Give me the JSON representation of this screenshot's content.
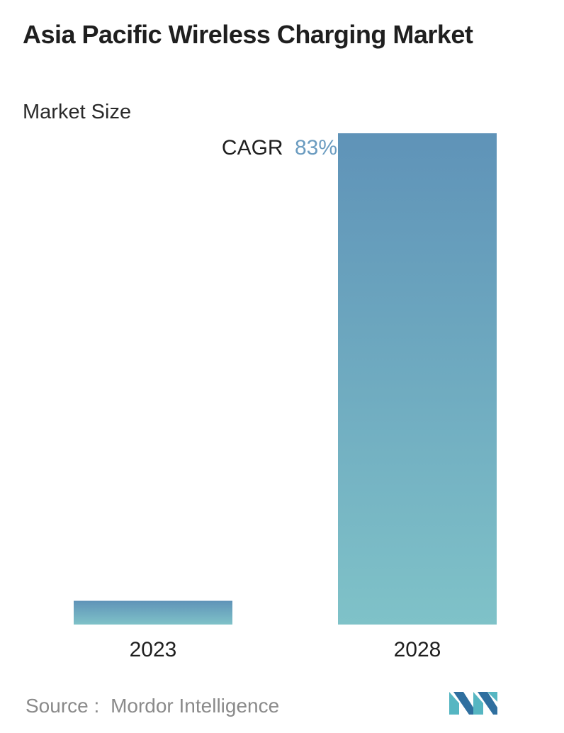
{
  "header": {
    "title": "Asia Pacific Wireless Charging Market",
    "subtitle": "Market Size"
  },
  "chart_data": {
    "type": "bar",
    "categories": [
      "2023",
      "2028"
    ],
    "values": [
      1,
      20.7
    ],
    "ylim": [
      0,
      20.7
    ],
    "grid": false,
    "annotation": {
      "label": "CAGR",
      "value": "83%"
    },
    "colors": {
      "bar_top": "#5f93b8",
      "bar_bottom": "#7fc2c8",
      "annotation_value": "#6b9cc0"
    }
  },
  "footer": {
    "source_label": "Source :",
    "source_name": "Mordor Intelligence"
  },
  "logo": {
    "icon": "mordor-intelligence-logo-icon",
    "color_dark": "#2f6f9f",
    "color_light": "#56b6c2"
  }
}
